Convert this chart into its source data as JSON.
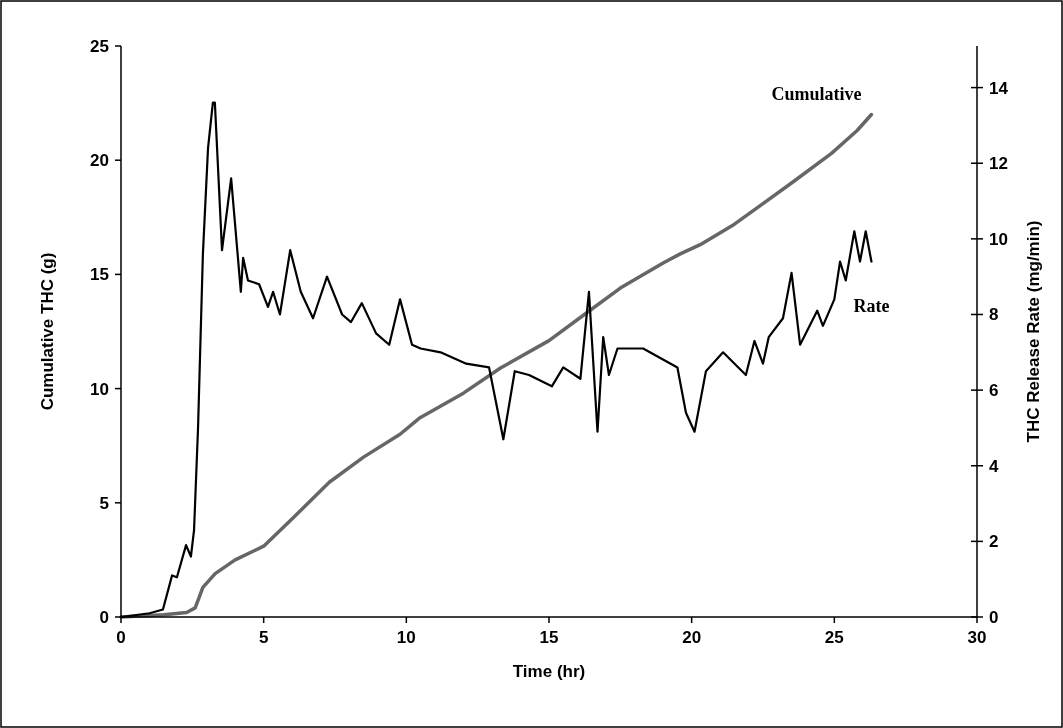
{
  "chart_data": {
    "type": "line",
    "xlabel": "Time (hr)",
    "ylabel": "Cumulative THC (g)",
    "y2label": "THC Release Rate (mg/min)",
    "xlim": [
      0,
      30
    ],
    "xticks": [
      0,
      5,
      10,
      15,
      20,
      25,
      30
    ],
    "ylim": [
      0,
      25
    ],
    "yticks": [
      0,
      5,
      10,
      15,
      20,
      25
    ],
    "y2lim": [
      0,
      15.1
    ],
    "y2ticks": [
      0,
      2,
      4,
      6,
      8,
      10,
      12,
      14
    ],
    "grid": false,
    "series": [
      {
        "name": "Cumulative",
        "color": "#666666",
        "axis": "y",
        "x": [
          0,
          1.5,
          2.3,
          2.6,
          2.87,
          3.3,
          4.0,
          5.0,
          6.0,
          7.3,
          8.5,
          9.78,
          10.45,
          12.0,
          13.3,
          15.0,
          16.3,
          17.5,
          19.0,
          19.6,
          20.3,
          21.5,
          22.5,
          23.5,
          24.9,
          25.8,
          26.3
        ],
        "values": [
          0,
          0.1,
          0.2,
          0.4,
          1.3,
          1.9,
          2.5,
          3.1,
          4.3,
          5.9,
          7.0,
          8.0,
          8.7,
          9.8,
          10.9,
          12.1,
          13.3,
          14.4,
          15.5,
          15.9,
          16.3,
          17.2,
          18.1,
          19.0,
          20.3,
          21.3,
          22.0
        ]
      },
      {
        "name": "Rate",
        "color": "#000000",
        "axis": "y2",
        "x": [
          0,
          1.0,
          1.47,
          1.79,
          1.96,
          2.28,
          2.45,
          2.56,
          2.7,
          2.87,
          3.05,
          3.22,
          3.29,
          3.54,
          3.86,
          4.2,
          4.28,
          4.45,
          4.84,
          5.15,
          5.33,
          5.57,
          5.93,
          6.3,
          6.73,
          7.22,
          7.75,
          8.06,
          8.44,
          8.94,
          9.4,
          9.78,
          10.2,
          10.5,
          11.2,
          12.1,
          12.9,
          13.4,
          13.8,
          14.3,
          15.1,
          15.5,
          16.1,
          16.4,
          16.7,
          16.9,
          17.1,
          17.4,
          18.3,
          19.5,
          19.8,
          20.1,
          20.5,
          21.1,
          21.9,
          22.2,
          22.5,
          22.7,
          23.2,
          23.5,
          23.8,
          24.4,
          24.6,
          25.0,
          25.2,
          25.4,
          25.7,
          25.9,
          26.1,
          26.3
        ],
        "values": [
          0,
          0.1,
          0.2,
          1.1,
          1.05,
          1.9,
          1.6,
          2.3,
          5.0,
          9.6,
          12.4,
          13.6,
          13.6,
          9.7,
          11.6,
          8.6,
          9.5,
          8.9,
          8.8,
          8.2,
          8.6,
          8.0,
          9.7,
          8.6,
          7.9,
          9.0,
          8.0,
          7.8,
          8.3,
          7.5,
          7.2,
          8.4,
          7.2,
          7.1,
          7.0,
          6.7,
          6.6,
          4.7,
          6.5,
          6.4,
          6.1,
          6.6,
          6.3,
          8.6,
          4.9,
          7.4,
          6.4,
          7.1,
          7.1,
          6.6,
          5.4,
          4.9,
          6.5,
          7.0,
          6.4,
          7.3,
          6.7,
          7.4,
          7.9,
          9.1,
          7.2,
          8.1,
          7.7,
          8.4,
          9.4,
          8.9,
          10.2,
          9.4,
          10.2,
          9.4
        ]
      }
    ]
  }
}
